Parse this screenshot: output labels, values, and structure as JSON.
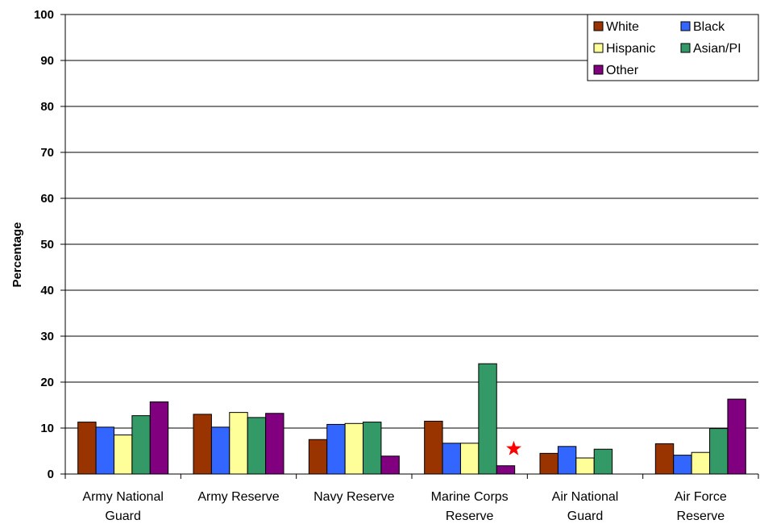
{
  "chart_data": {
    "type": "bar",
    "title": "",
    "xlabel": "",
    "ylabel": "Percentage",
    "ylim": [
      0,
      100
    ],
    "yticks": [
      0,
      10,
      20,
      30,
      40,
      50,
      60,
      70,
      80,
      90,
      100
    ],
    "grid": true,
    "legend_position": "top-right",
    "categories": [
      [
        "Army National",
        "Guard"
      ],
      [
        "Army Reserve"
      ],
      [
        "Navy Reserve"
      ],
      [
        "Marine Corps",
        "Reserve"
      ],
      [
        "Air National",
        "Guard"
      ],
      [
        "Air Force",
        "Reserve"
      ]
    ],
    "series": [
      {
        "name": "White",
        "color": "#993300",
        "values": [
          11.3,
          13.0,
          7.5,
          11.5,
          4.5,
          6.6
        ]
      },
      {
        "name": "Black",
        "color": "#3366FF",
        "values": [
          10.2,
          10.2,
          10.8,
          6.7,
          6.0,
          4.1
        ]
      },
      {
        "name": "Hispanic",
        "color": "#FFFF99",
        "values": [
          8.5,
          13.4,
          11.0,
          6.7,
          3.5,
          4.7
        ]
      },
      {
        "name": "Asian/PI",
        "color": "#339966",
        "values": [
          12.7,
          12.3,
          11.3,
          24.0,
          5.4,
          9.9
        ]
      },
      {
        "name": "Other",
        "color": "#800080",
        "values": [
          15.7,
          13.2,
          3.9,
          1.8,
          null,
          16.3
        ]
      }
    ],
    "annotations": [
      {
        "type": "star-marker",
        "category": 3,
        "series": "Other",
        "color": "#FF0000"
      }
    ]
  }
}
